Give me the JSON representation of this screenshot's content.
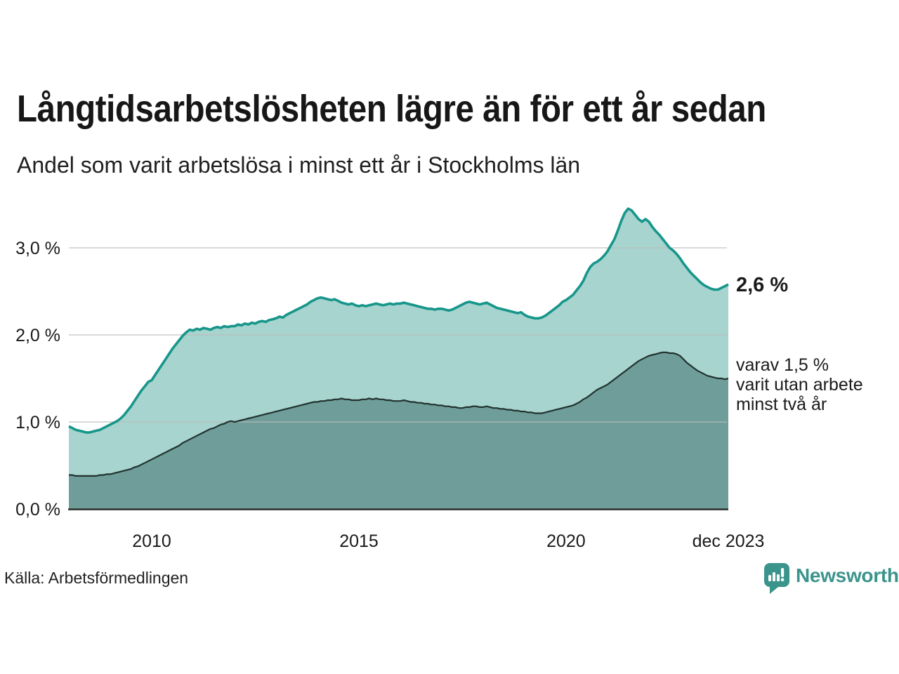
{
  "header": {
    "title": "Långtidsarbetslösheten lägre än för ett år sedan",
    "subtitle": "Andel som varit arbetslösa i minst ett år i Stockholms län"
  },
  "chart_data": {
    "type": "area",
    "variant": "overlapping-areas-with-line",
    "title": "Långtidsarbetslösheten lägre än för ett år sedan",
    "subtitle": "Andel som varit arbetslösa i minst ett år i Stockholms län",
    "unit": "%",
    "x_start": "2008-01",
    "x_end": "2023-12",
    "frequency": "monthly",
    "ylim": [
      0,
      3.5
    ],
    "grid": "horizontal",
    "yticks": [
      {
        "value": 0,
        "label": "0,0 %"
      },
      {
        "value": 1,
        "label": "1,0 %"
      },
      {
        "value": 2,
        "label": "2,0 %"
      },
      {
        "value": 3,
        "label": "3,0 %"
      }
    ],
    "xticks": [
      {
        "index": 24,
        "label": "2010"
      },
      {
        "index": 84,
        "label": "2015"
      },
      {
        "index": 144,
        "label": "2020"
      },
      {
        "index": 191,
        "label": "dec 2023"
      }
    ],
    "series": [
      {
        "name": "Andel arbetslösa minst ett år",
        "line_color": "#17968a",
        "fill_color": "#a7d4cf",
        "line_width": 3.6,
        "values": [
          0.95,
          0.93,
          0.91,
          0.9,
          0.89,
          0.88,
          0.88,
          0.89,
          0.9,
          0.91,
          0.93,
          0.95,
          0.97,
          0.99,
          1.01,
          1.04,
          1.08,
          1.13,
          1.18,
          1.24,
          1.3,
          1.36,
          1.41,
          1.46,
          1.48,
          1.54,
          1.6,
          1.66,
          1.72,
          1.78,
          1.84,
          1.89,
          1.94,
          1.99,
          2.03,
          2.06,
          2.05,
          2.07,
          2.06,
          2.08,
          2.07,
          2.06,
          2.08,
          2.09,
          2.08,
          2.1,
          2.09,
          2.1,
          2.1,
          2.12,
          2.11,
          2.13,
          2.12,
          2.14,
          2.13,
          2.15,
          2.16,
          2.15,
          2.17,
          2.18,
          2.19,
          2.21,
          2.2,
          2.23,
          2.25,
          2.27,
          2.29,
          2.31,
          2.33,
          2.35,
          2.38,
          2.4,
          2.42,
          2.43,
          2.42,
          2.41,
          2.4,
          2.41,
          2.39,
          2.37,
          2.36,
          2.35,
          2.36,
          2.34,
          2.33,
          2.34,
          2.33,
          2.34,
          2.35,
          2.36,
          2.35,
          2.34,
          2.35,
          2.36,
          2.35,
          2.36,
          2.36,
          2.37,
          2.36,
          2.35,
          2.34,
          2.33,
          2.32,
          2.31,
          2.3,
          2.3,
          2.29,
          2.3,
          2.3,
          2.29,
          2.28,
          2.29,
          2.31,
          2.33,
          2.35,
          2.37,
          2.38,
          2.37,
          2.36,
          2.35,
          2.36,
          2.37,
          2.35,
          2.33,
          2.31,
          2.3,
          2.29,
          2.28,
          2.27,
          2.26,
          2.25,
          2.26,
          2.23,
          2.21,
          2.2,
          2.19,
          2.19,
          2.2,
          2.22,
          2.25,
          2.28,
          2.31,
          2.34,
          2.38,
          2.4,
          2.43,
          2.46,
          2.51,
          2.56,
          2.62,
          2.71,
          2.78,
          2.82,
          2.84,
          2.87,
          2.91,
          2.96,
          3.03,
          3.1,
          3.2,
          3.31,
          3.4,
          3.45,
          3.43,
          3.38,
          3.33,
          3.3,
          3.33,
          3.3,
          3.24,
          3.19,
          3.15,
          3.1,
          3.05,
          3.0,
          2.97,
          2.93,
          2.88,
          2.82,
          2.77,
          2.72,
          2.68,
          2.64,
          2.6,
          2.57,
          2.55,
          2.53,
          2.52,
          2.52,
          2.54,
          2.56,
          2.58
        ]
      },
      {
        "name": "Andel utan arbete minst två år",
        "line_color": "#22322f",
        "fill_color": "#6f9e9a",
        "line_width": 2.2,
        "values": [
          0.39,
          0.39,
          0.38,
          0.38,
          0.38,
          0.38,
          0.38,
          0.38,
          0.38,
          0.39,
          0.39,
          0.4,
          0.4,
          0.41,
          0.42,
          0.43,
          0.44,
          0.45,
          0.46,
          0.48,
          0.49,
          0.51,
          0.53,
          0.55,
          0.57,
          0.59,
          0.61,
          0.63,
          0.65,
          0.67,
          0.69,
          0.71,
          0.73,
          0.76,
          0.78,
          0.8,
          0.82,
          0.84,
          0.86,
          0.88,
          0.9,
          0.92,
          0.93,
          0.95,
          0.97,
          0.98,
          1.0,
          1.01,
          1.0,
          1.01,
          1.02,
          1.03,
          1.04,
          1.05,
          1.06,
          1.07,
          1.08,
          1.09,
          1.1,
          1.11,
          1.12,
          1.13,
          1.14,
          1.15,
          1.16,
          1.17,
          1.18,
          1.19,
          1.2,
          1.21,
          1.22,
          1.23,
          1.23,
          1.24,
          1.24,
          1.25,
          1.25,
          1.26,
          1.26,
          1.27,
          1.26,
          1.26,
          1.25,
          1.25,
          1.25,
          1.26,
          1.26,
          1.27,
          1.26,
          1.27,
          1.26,
          1.26,
          1.25,
          1.25,
          1.24,
          1.24,
          1.24,
          1.25,
          1.24,
          1.23,
          1.23,
          1.22,
          1.22,
          1.21,
          1.21,
          1.2,
          1.2,
          1.19,
          1.19,
          1.18,
          1.18,
          1.17,
          1.17,
          1.16,
          1.16,
          1.17,
          1.17,
          1.18,
          1.18,
          1.17,
          1.17,
          1.18,
          1.17,
          1.16,
          1.16,
          1.15,
          1.15,
          1.14,
          1.14,
          1.13,
          1.13,
          1.12,
          1.12,
          1.11,
          1.11,
          1.1,
          1.1,
          1.1,
          1.11,
          1.12,
          1.13,
          1.14,
          1.15,
          1.16,
          1.17,
          1.18,
          1.19,
          1.21,
          1.23,
          1.26,
          1.28,
          1.31,
          1.34,
          1.37,
          1.39,
          1.41,
          1.43,
          1.46,
          1.49,
          1.52,
          1.55,
          1.58,
          1.61,
          1.64,
          1.67,
          1.7,
          1.72,
          1.74,
          1.76,
          1.77,
          1.78,
          1.79,
          1.8,
          1.8,
          1.79,
          1.79,
          1.78,
          1.76,
          1.72,
          1.68,
          1.65,
          1.62,
          1.59,
          1.57,
          1.55,
          1.53,
          1.52,
          1.51,
          1.5,
          1.5,
          1.49,
          1.5
        ]
      }
    ],
    "legend_position": "right-annotations"
  },
  "annotations": {
    "latest_total": "2,6 %",
    "note_lines": [
      "varav 1,5 %",
      "varit utan arbete",
      "minst två år"
    ]
  },
  "footer": {
    "source": "Källa: Arbetsförmedlingen"
  },
  "logo": {
    "name": "Newsworthy",
    "icon": "newsworthy-speech-bubble-bar-chart-icon",
    "color": "#3b948c"
  },
  "colors": {
    "background": "#ffffff",
    "text": "#1a1a1a",
    "grid": "#b9b9b9",
    "baseline": "#2b2b2b",
    "accent_teal": "#17968a",
    "fill_light": "#a7d4cf",
    "fill_dark": "#6f9e9a",
    "brand": "#3b948c"
  }
}
